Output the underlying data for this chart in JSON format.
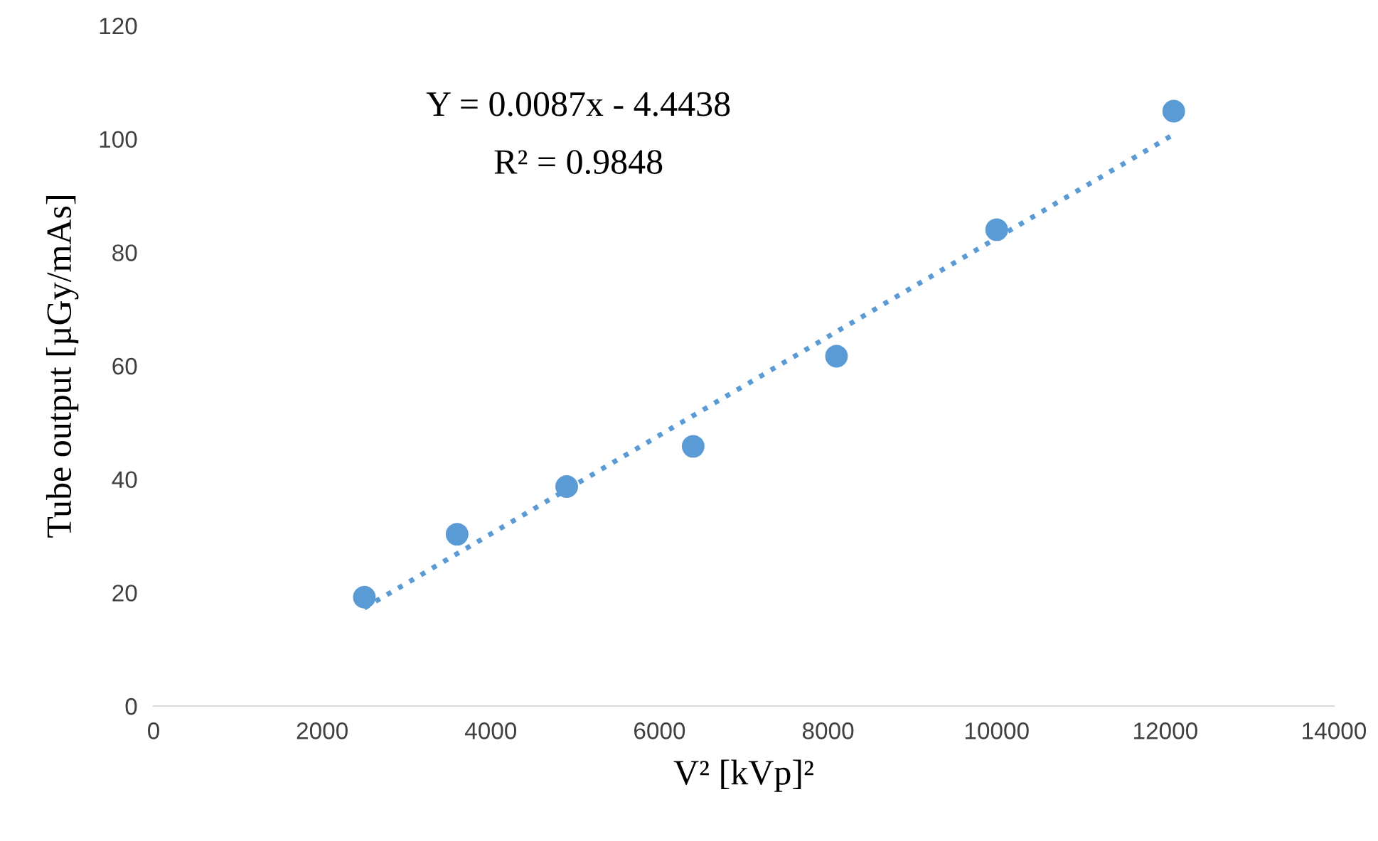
{
  "chart_data": {
    "type": "scatter",
    "xlabel": "V² [kVp]²",
    "ylabel": "Tube output [µGy/mAs]",
    "annotations": [
      "Y = 0.0087x - 4.4438",
      "R² = 0.9848"
    ],
    "series": [
      {
        "color": "#5b9bd5",
        "marker": "circle",
        "x": [
          2500,
          3600,
          4900,
          6400,
          8100,
          10000,
          12100
        ],
        "values": [
          19.2,
          30.3,
          38.7,
          45.8,
          61.7,
          84.0,
          104.9
        ]
      },
      {
        "type": "line",
        "color": "#5b9bd5",
        "line_style": "dotted",
        "marker": "none",
        "x": [
          2500,
          12100
        ],
        "values": [
          17.3,
          100.8
        ]
      }
    ],
    "xlim": [
      0,
      14000
    ],
    "xticks": [
      0,
      2000,
      4000,
      6000,
      8000,
      10000,
      12000,
      14000
    ],
    "ylim": [
      0,
      120
    ],
    "yticks": [
      0,
      20,
      40,
      60,
      80,
      100,
      120
    ],
    "grid": false,
    "legend": false
  }
}
